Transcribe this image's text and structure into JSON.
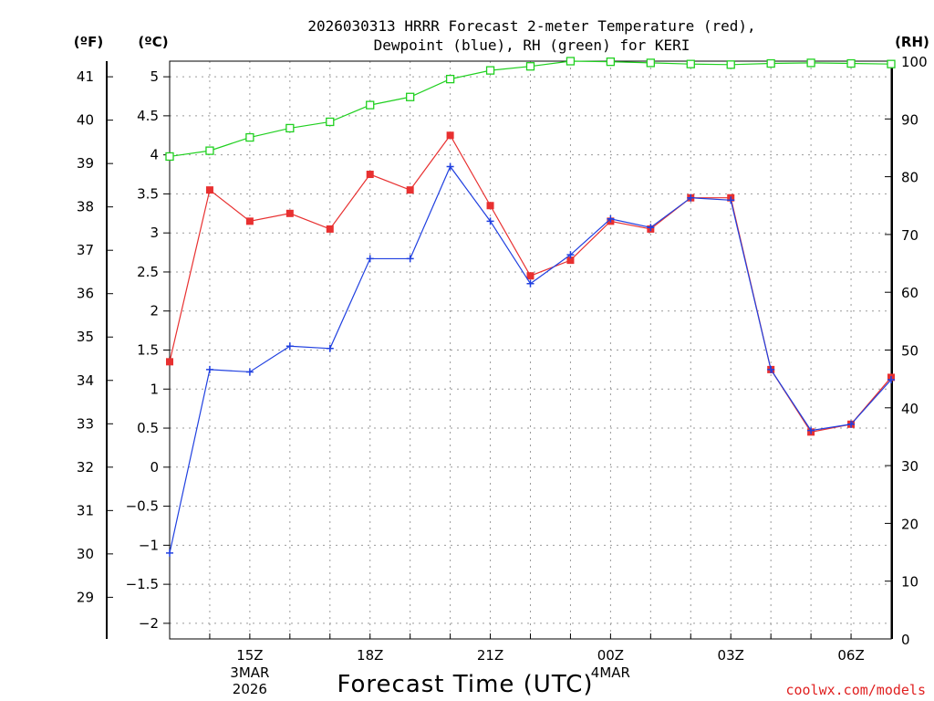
{
  "chart_data": {
    "type": "line",
    "title_line1": "2026030313 HRRR Forecast 2-meter Temperature (red),",
    "title_line2": "Dewpoint (blue), RH (green) for KERI",
    "unit_f": "(ºF)",
    "unit_c": "(ºC)",
    "unit_rh": "(RH)",
    "xlabel": "Forecast Time (UTC)",
    "credit": "coolwx.com/models",
    "x_hours": [
      13,
      14,
      15,
      16,
      17,
      18,
      19,
      20,
      21,
      22,
      23,
      24,
      25,
      26,
      27,
      28,
      29,
      30,
      31
    ],
    "x_range": [
      13,
      31
    ],
    "x_ticks": [
      {
        "hour": 15,
        "label": "15Z",
        "sub1": "3MAR",
        "sub2": "2026"
      },
      {
        "hour": 18,
        "label": "18Z",
        "sub1": "",
        "sub2": ""
      },
      {
        "hour": 21,
        "label": "21Z",
        "sub1": "",
        "sub2": ""
      },
      {
        "hour": 24,
        "label": "00Z",
        "sub1": "4MAR",
        "sub2": ""
      },
      {
        "hour": 27,
        "label": "03Z",
        "sub1": "",
        "sub2": ""
      },
      {
        "hour": 30,
        "label": "06Z",
        "sub1": "",
        "sub2": ""
      }
    ],
    "y_celsius_range": [
      -2.2,
      5.2
    ],
    "y_celsius_ticks": [
      "-2",
      "-1.5",
      "-1",
      "-0.5",
      "0",
      "0.5",
      "1",
      "1.5",
      "2",
      "2.5",
      "3",
      "3.5",
      "4",
      "4.5",
      "5"
    ],
    "y_fahrenheit_ticks": [
      "29",
      "30",
      "31",
      "32",
      "33",
      "34",
      "35",
      "36",
      "37",
      "38",
      "39",
      "40",
      "41"
    ],
    "y_rh_range": [
      0,
      100
    ],
    "y_rh_ticks": [
      "0",
      "10",
      "20",
      "30",
      "40",
      "50",
      "60",
      "70",
      "80",
      "90",
      "100"
    ],
    "series": [
      {
        "name": "Temperature",
        "unit": "C",
        "color": "#e83030",
        "marker": "square-filled",
        "values": [
          1.35,
          3.55,
          3.15,
          3.25,
          3.05,
          3.75,
          3.55,
          4.25,
          3.35,
          2.45,
          2.65,
          3.15,
          3.05,
          3.45,
          3.45,
          1.25,
          0.45,
          0.55,
          1.15
        ]
      },
      {
        "name": "Dewpoint",
        "unit": "C",
        "color": "#2040e0",
        "marker": "plus",
        "values": [
          -1.1,
          1.25,
          1.22,
          1.55,
          1.52,
          2.67,
          2.67,
          3.85,
          3.15,
          2.35,
          2.72,
          3.18,
          3.07,
          3.45,
          3.42,
          1.25,
          0.47,
          0.55,
          1.12
        ]
      },
      {
        "name": "RH",
        "unit": "%",
        "color": "#20d020",
        "marker": "square-open",
        "values": [
          83.5,
          84.5,
          86.8,
          88.4,
          89.5,
          92.4,
          93.8,
          96.9,
          98.4,
          99.1,
          100,
          99.9,
          99.7,
          99.5,
          99.4,
          99.6,
          99.7,
          99.6,
          99.5
        ]
      }
    ]
  }
}
